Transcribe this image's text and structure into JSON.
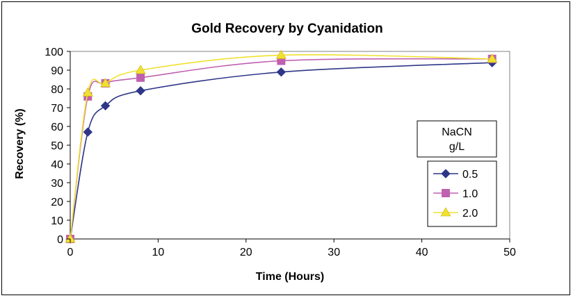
{
  "chart_data": {
    "type": "line",
    "title": "Gold Recovery by Cyanidation",
    "xlabel": "Time (Hours)",
    "ylabel": "Recovery (%)",
    "xlim": [
      0,
      50
    ],
    "ylim": [
      0,
      100
    ],
    "xticks": [
      0,
      10,
      20,
      30,
      40,
      50
    ],
    "yticks": [
      0,
      10,
      20,
      30,
      40,
      50,
      60,
      70,
      80,
      90,
      100
    ],
    "grid": false,
    "legend_placement": "right",
    "legend_title": [
      "NaCN",
      "g/L"
    ],
    "series": [
      {
        "name": "0.5",
        "color": "#2E3787",
        "marker": "diamond",
        "x": [
          0,
          2,
          4,
          8,
          24,
          48
        ],
        "y": [
          0,
          57,
          71,
          79,
          89,
          94
        ]
      },
      {
        "name": "1.0",
        "color": "#C060B0",
        "marker": "square",
        "x": [
          0,
          2,
          4,
          8,
          24,
          48
        ],
        "y": [
          0,
          76,
          83,
          86,
          95,
          96
        ]
      },
      {
        "name": "2.0",
        "color": "#F0E030",
        "marker": "triangle",
        "x": [
          0,
          2,
          4,
          8,
          24,
          48
        ],
        "y": [
          0,
          78,
          83,
          90,
          98,
          96
        ]
      }
    ]
  }
}
